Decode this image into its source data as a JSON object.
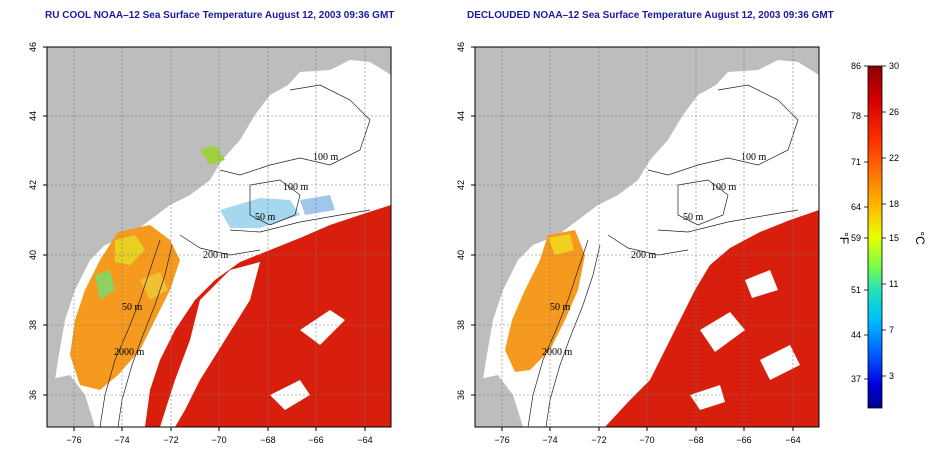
{
  "panels": [
    {
      "id": "left",
      "title": "RU COOL NOAA–12 Sea Surface Temperature August 12, 2003 09:36 GMT",
      "isobaths": [
        "100 m",
        "100 m",
        "50 m",
        "200 m",
        "50 m",
        "2000 m"
      ]
    },
    {
      "id": "right",
      "title": "DECLOUDED NOAA–12 Sea Surface Temperature August 12, 2003 09:36 GMT",
      "isobaths": [
        "100 m",
        "100 m",
        "50 m",
        "200 m",
        "50 m",
        "2000 m"
      ]
    }
  ],
  "axes": {
    "x_ticks": [
      "−76",
      "−74",
      "−72",
      "−70",
      "−68",
      "−66",
      "−64"
    ],
    "y_ticks": [
      "36",
      "38",
      "40",
      "42",
      "44",
      "46"
    ]
  },
  "colorbar": {
    "fahrenheit_label": "°F",
    "celsius_label": "°C",
    "fahrenheit_ticks": [
      "86",
      "78",
      "71",
      "64",
      "59",
      "51",
      "44",
      "37"
    ],
    "celsius_ticks": [
      "30",
      "26",
      "22",
      "18",
      "15",
      "11",
      "7",
      "3"
    ],
    "colors": [
      "#8b0000",
      "#d40000",
      "#ff3000",
      "#ff8000",
      "#ffc000",
      "#e8ff00",
      "#80ff40",
      "#20e0c0",
      "#00c0ff",
      "#0060ff",
      "#0000e0",
      "#00008b"
    ]
  },
  "colors": {
    "land": "#bdbdbd",
    "warm_water": "#d81e0c",
    "shelf_orange": "#f59a1f",
    "cloud_white": "#ffffff",
    "title_blue": "#1a1aa0"
  }
}
